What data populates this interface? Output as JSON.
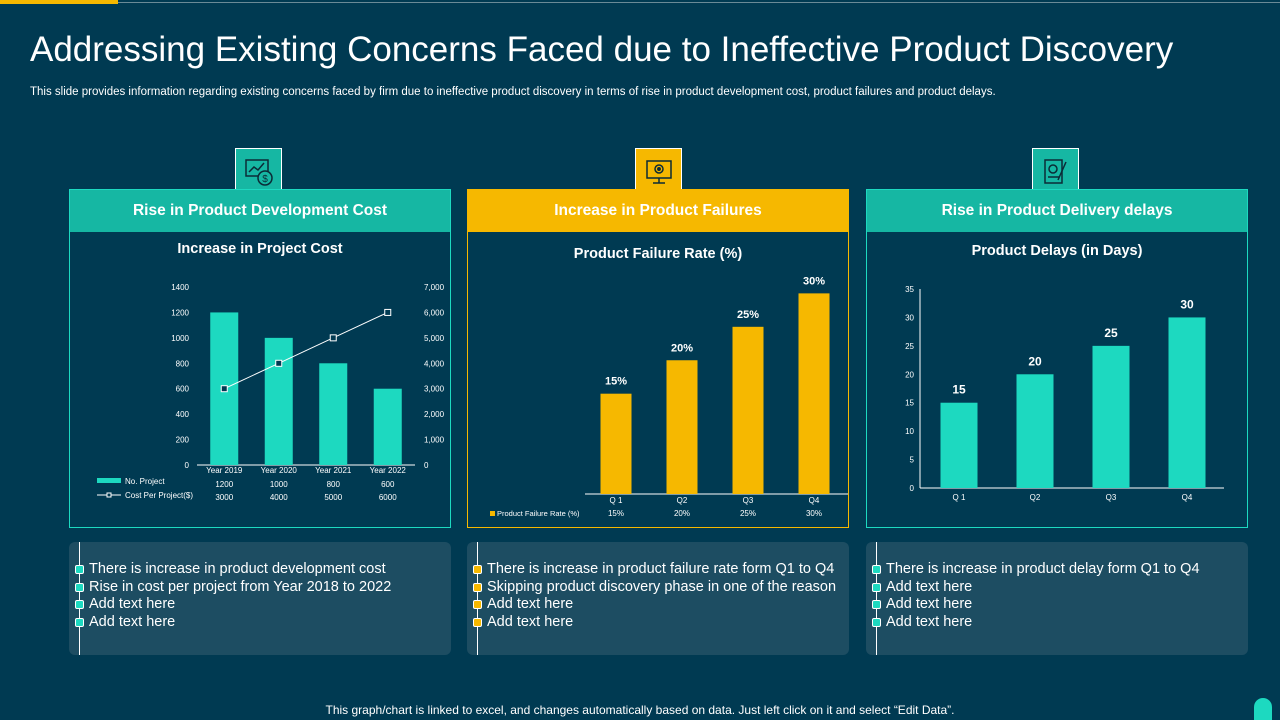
{
  "title": "Addressing Existing Concerns Faced due to Ineffective Product Discovery",
  "subtitle": "This slide provides information regarding existing concerns faced by firm due to ineffective product discovery in terms of rise in product development cost, product failures and product delays.",
  "colors": {
    "teal": "#1dd9c0",
    "teal_dark": "#16b7a3",
    "yellow": "#f6b800",
    "bg": "#003a52",
    "note_bg": "#1d4d62"
  },
  "panels": [
    {
      "header": "Rise in Product Development Cost",
      "icon": "chart-dollar-icon"
    },
    {
      "header": "Increase in Product Failures",
      "icon": "monitor-gear-icon"
    },
    {
      "header": "Rise in Product Delivery delays",
      "icon": "document-gear-icon"
    }
  ],
  "chart_data": [
    {
      "type": "bar",
      "title": "Increase in Project Cost",
      "categories": [
        "Year 2019",
        "Year 2020",
        "Year 2021",
        "Year 2022"
      ],
      "series": [
        {
          "name": "No. Project",
          "type": "bar",
          "values": [
            1200,
            1000,
            800,
            600
          ],
          "value_labels": [
            "1200",
            "1000",
            "800",
            "600"
          ]
        },
        {
          "name": "Cost Per Project($)",
          "type": "line",
          "axis": "secondary",
          "values": [
            3000,
            4000,
            5000,
            6000
          ],
          "value_labels": [
            "3000",
            "4000",
            "5000",
            "6000"
          ]
        }
      ],
      "ylim": [
        0,
        1400
      ],
      "yticks": [
        "0",
        "200",
        "400",
        "600",
        "800",
        "1000",
        "1200",
        "1400"
      ],
      "y2lim": [
        0,
        7000
      ],
      "y2ticks": [
        "0",
        "1,000",
        "2,000",
        "3,000",
        "4,000",
        "5,000",
        "6,000",
        "7,000"
      ]
    },
    {
      "type": "bar",
      "title": "Product Failure Rate (%)",
      "categories": [
        "Q 1",
        "Q2",
        "Q3",
        "Q4"
      ],
      "series": [
        {
          "name": "Product Failure Rate (%)",
          "values": [
            15,
            20,
            25,
            30
          ],
          "value_labels": [
            "15%",
            "20%",
            "25%",
            "30%"
          ]
        }
      ],
      "ylim": [
        0,
        32
      ]
    },
    {
      "type": "bar",
      "title": "Product Delays (in Days)",
      "categories": [
        "Q 1",
        "Q2",
        "Q3",
        "Q4"
      ],
      "series": [
        {
          "name": "Product Delays (in Days)",
          "values": [
            15,
            20,
            25,
            30
          ],
          "value_labels": [
            "15",
            "20",
            "25",
            "30"
          ]
        }
      ],
      "ylim": [
        0,
        35
      ],
      "yticks": [
        "0",
        "5",
        "10",
        "15",
        "20",
        "25",
        "30",
        "35"
      ]
    }
  ],
  "notes": [
    [
      "There is increase in product development cost",
      "Rise in cost per project from Year 2018 to 2022",
      "Add text here",
      "Add text here"
    ],
    [
      "There is increase in product failure rate form Q1 to Q4",
      "Skipping product discovery phase in one of the reason",
      "Add text here",
      "Add text here"
    ],
    [
      "There is increase in product delay form Q1 to Q4",
      "Add text here",
      "Add text here",
      "Add text here"
    ]
  ],
  "footer": "This graph/chart is linked to excel, and changes automatically based on data. Just left click on it and select “Edit Data”."
}
